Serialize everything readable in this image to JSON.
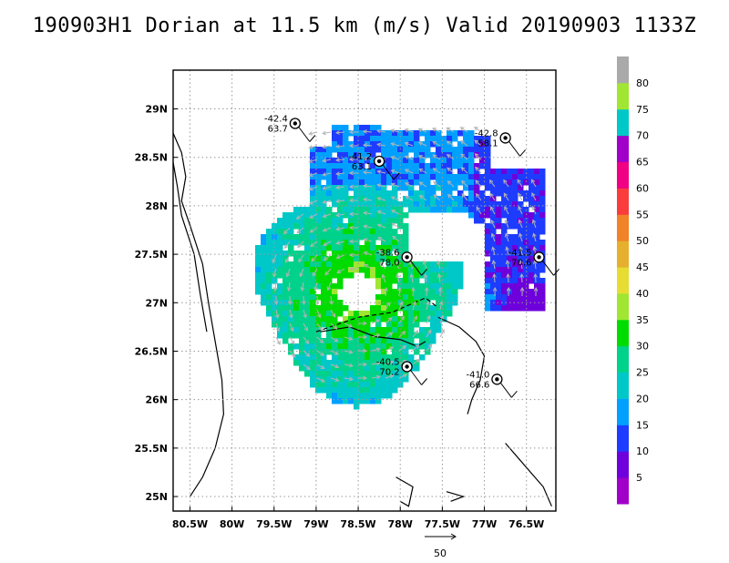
{
  "title": "190903H1 Dorian at 11.5 km (m/s) Valid 20190903 1133Z",
  "chart_data": {
    "type": "wind-map",
    "title": "190903H1 Dorian at 11.5 km (m/s) Valid 20190903 1133Z",
    "x_axis": {
      "range": [
        -80.7,
        -76.15
      ],
      "ticks": [
        -80.5,
        -80,
        -79.5,
        -79,
        -78.5,
        -78,
        -77.5,
        -77,
        -76.5
      ],
      "tick_labels": [
        "80.5W",
        "80W",
        "79.5W",
        "79W",
        "78.5W",
        "78W",
        "77.5W",
        "77W",
        "76.5W"
      ]
    },
    "y_axis": {
      "range": [
        24.85,
        29.4
      ],
      "ticks": [
        25,
        25.5,
        26,
        26.5,
        27,
        27.5,
        28,
        28.5,
        29
      ],
      "tick_labels": [
        "25N",
        "25.5N",
        "26N",
        "26.5N",
        "27N",
        "27.5N",
        "28N",
        "28.5N",
        "29N"
      ]
    },
    "grid": true,
    "colorbar": {
      "levels": [
        0,
        5,
        10,
        15,
        20,
        25,
        30,
        35,
        40,
        45,
        50,
        55,
        60,
        65,
        70,
        75,
        80,
        85
      ],
      "labels": [
        "5",
        "10",
        "15",
        "20",
        "25",
        "30",
        "35",
        "40",
        "45",
        "50",
        "55",
        "60",
        "65",
        "70",
        "75",
        "80"
      ],
      "colors": [
        "#a000c8",
        "#6e00dc",
        "#1e3cff",
        "#00a0ff",
        "#00c8c8",
        "#00d28c",
        "#00dc00",
        "#a0e632",
        "#e6dc32",
        "#e6af2d",
        "#f08228",
        "#fa3c3c",
        "#f00082",
        "#a000c8",
        "#00c8c8",
        "#a0e632",
        "#aaaaaa"
      ]
    },
    "dropsondes": [
      {
        "lon": -79.25,
        "lat": 28.85,
        "temp": "-42.4",
        "wind": "63.7"
      },
      {
        "lon": -78.25,
        "lat": 28.46,
        "temp": "-41.2",
        "wind": "63.1"
      },
      {
        "lon": -76.75,
        "lat": 28.7,
        "temp": "-42.8",
        "wind": "58.1"
      },
      {
        "lon": -77.92,
        "lat": 27.47,
        "temp": "-38.6",
        "wind": "78.0"
      },
      {
        "lon": -76.35,
        "lat": 27.47,
        "temp": "-41.5",
        "wind": "70.6"
      },
      {
        "lon": -77.92,
        "lat": 26.34,
        "temp": "-40.5",
        "wind": "70.2"
      },
      {
        "lon": -76.85,
        "lat": 26.21,
        "temp": "-41.0",
        "wind": "66.6"
      }
    ],
    "storm_center": {
      "lon": -78.5,
      "lat": 27.1
    },
    "reference_vector": "50"
  }
}
